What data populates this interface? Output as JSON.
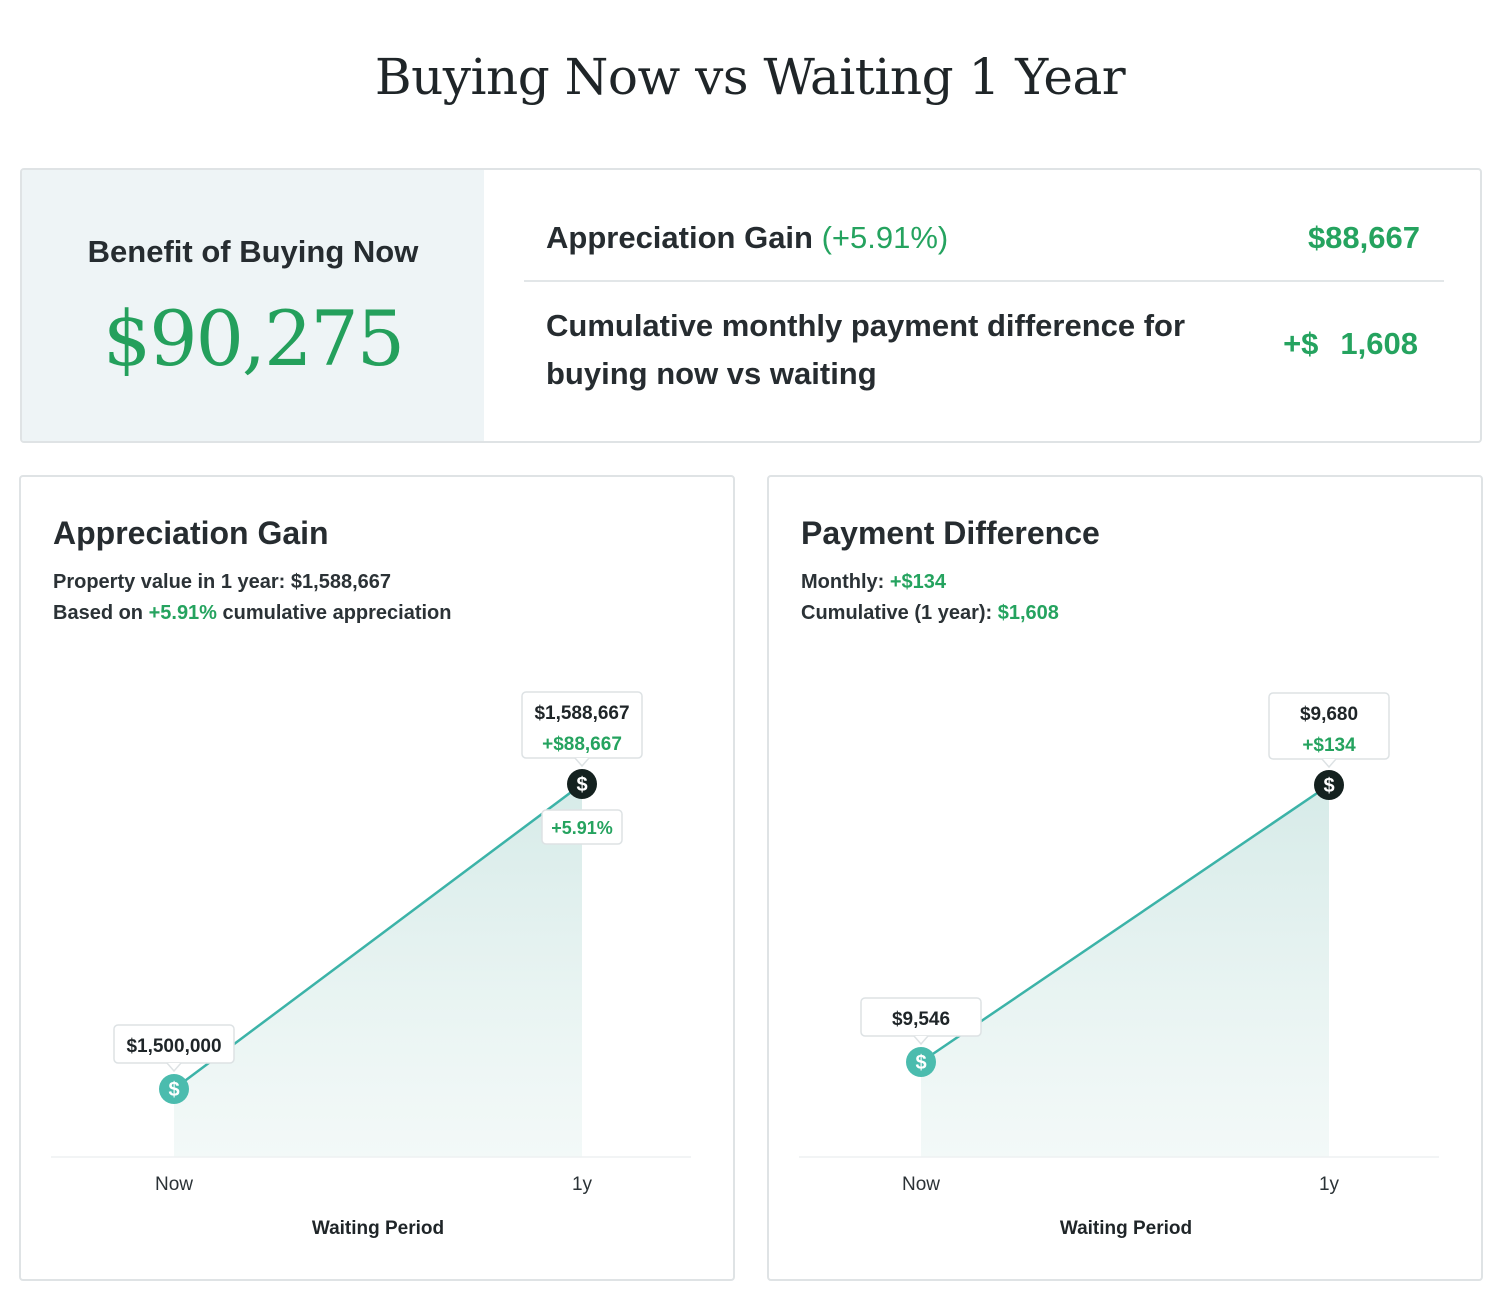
{
  "title": "Buying Now vs Waiting 1 Year",
  "summary": {
    "benefit_label": "Benefit of Buying Now",
    "benefit_value": "$90,275",
    "appreciation_label": "Appreciation Gain",
    "appreciation_pct": "(+5.91%)",
    "appreciation_value": "$88,667",
    "payment_label": "Cumulative monthly payment difference for buying now vs waiting",
    "payment_prefix": "+$",
    "payment_value": "1,608"
  },
  "colors": {
    "accent_green": "#25a35f",
    "line_teal": "#3cb3a8",
    "marker_dark": "#14211f"
  },
  "charts": {
    "appreciation": {
      "title": "Appreciation Gain",
      "line1_label": "Property value in 1 year: ",
      "line1_value": "$1,588,667",
      "line2_prefix": "Based on ",
      "line2_pct": "+5.91%",
      "line2_suffix": " cumulative appreciation",
      "start_label": "$1,500,000",
      "end_label": "$1,588,667",
      "end_delta": "+$88,667",
      "pct_badge": "+5.91%",
      "x_ticks": [
        "Now",
        "1y"
      ],
      "x_title": "Waiting Period"
    },
    "payment": {
      "title": "Payment Difference",
      "line1_label": "Monthly: ",
      "line1_value": "+$134",
      "line2_label": "Cumulative (1 year): ",
      "line2_value": "$1,608",
      "start_label": "$9,546",
      "end_label": "$9,680",
      "end_delta": "+$134",
      "x_ticks": [
        "Now",
        "1y"
      ],
      "x_title": "Waiting Period"
    }
  },
  "chart_data": [
    {
      "type": "area",
      "title": "Appreciation Gain",
      "xlabel": "Waiting Period",
      "categories": [
        "Now",
        "1y"
      ],
      "values": [
        1500000,
        1588667
      ]
    },
    {
      "type": "area",
      "title": "Payment Difference",
      "xlabel": "Waiting Period",
      "categories": [
        "Now",
        "1y"
      ],
      "values": [
        9546,
        9680
      ]
    }
  ]
}
